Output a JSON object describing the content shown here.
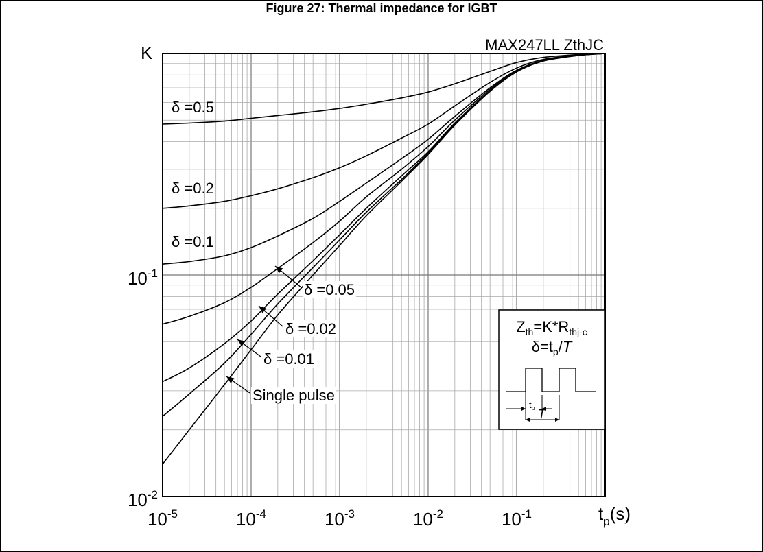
{
  "figure": {
    "title": "Figure 27: Thermal impedance for IGBT"
  },
  "chart_data": {
    "type": "line",
    "title": "MAX247LL  ZthJC",
    "ylabel": "K",
    "xlabel_main": "t",
    "xlabel_sub": "p",
    "xlabel_unit": "(s)",
    "x_scale": "log",
    "y_scale": "log",
    "xlim": [
      1e-05,
      1
    ],
    "ylim": [
      0.01,
      1
    ],
    "grid": true,
    "x_ticks": [
      {
        "base": "10",
        "exp": "-5"
      },
      {
        "base": "10",
        "exp": "-4"
      },
      {
        "base": "10",
        "exp": "-3"
      },
      {
        "base": "10",
        "exp": "-2"
      },
      {
        "base": "10",
        "exp": "-1"
      }
    ],
    "y_ticks": [
      {
        "base": "10",
        "exp": "-1"
      },
      {
        "base": "10",
        "exp": "-2"
      }
    ],
    "x": [
      1e-05,
      2e-05,
      5e-05,
      0.0001,
      0.0002,
      0.0005,
      0.001,
      0.002,
      0.005,
      0.01,
      0.02,
      0.05,
      0.1,
      0.2,
      0.5,
      1
    ],
    "series": [
      {
        "name": "δ =0.5",
        "values": [
          0.48,
          0.485,
          0.495,
          0.51,
          0.525,
          0.545,
          0.565,
          0.59,
          0.63,
          0.67,
          0.73,
          0.83,
          0.91,
          0.96,
          0.99,
          1.0
        ]
      },
      {
        "name": "δ =0.2",
        "values": [
          0.2,
          0.205,
          0.215,
          0.228,
          0.245,
          0.275,
          0.305,
          0.345,
          0.415,
          0.48,
          0.58,
          0.74,
          0.86,
          0.94,
          0.985,
          1.0
        ]
      },
      {
        "name": "δ =0.1",
        "values": [
          0.112,
          0.115,
          0.122,
          0.133,
          0.15,
          0.18,
          0.215,
          0.26,
          0.335,
          0.41,
          0.52,
          0.7,
          0.84,
          0.93,
          0.983,
          1.0
        ]
      },
      {
        "name": "δ =0.05",
        "values": [
          0.06,
          0.065,
          0.075,
          0.088,
          0.107,
          0.14,
          0.175,
          0.225,
          0.3,
          0.38,
          0.5,
          0.69,
          0.835,
          0.928,
          0.982,
          1.0
        ]
      },
      {
        "name": "δ =0.02",
        "values": [
          0.033,
          0.038,
          0.049,
          0.062,
          0.082,
          0.116,
          0.152,
          0.2,
          0.28,
          0.36,
          0.485,
          0.68,
          0.83,
          0.926,
          0.981,
          1.0
        ]
      },
      {
        "name": "δ =0.01",
        "values": [
          0.023,
          0.029,
          0.04,
          0.054,
          0.074,
          0.108,
          0.144,
          0.192,
          0.27,
          0.355,
          0.48,
          0.678,
          0.828,
          0.925,
          0.98,
          1.0
        ]
      },
      {
        "name": "Single pulse",
        "values": [
          0.014,
          0.02,
          0.032,
          0.046,
          0.066,
          0.1,
          0.136,
          0.185,
          0.265,
          0.35,
          0.475,
          0.675,
          0.826,
          0.924,
          0.98,
          1.0
        ]
      }
    ],
    "annotations": {
      "d05": "δ =0.5",
      "d02": "δ =0.2",
      "d01": "δ =0.1",
      "d005": "δ =0.05",
      "d002": "δ =0.02",
      "d001": "δ =0.01",
      "single": "Single pulse"
    },
    "inset": {
      "z_main": "Z",
      "z_sub": "th",
      "z_mid": "=K*R",
      "r_sub": "thj-c",
      "delta_a": "δ=t",
      "delta_sub": "p",
      "delta_b": "/",
      "delta_T": "T",
      "tp_main": "t",
      "tp_sub": "p",
      "T_label": "T"
    }
  }
}
